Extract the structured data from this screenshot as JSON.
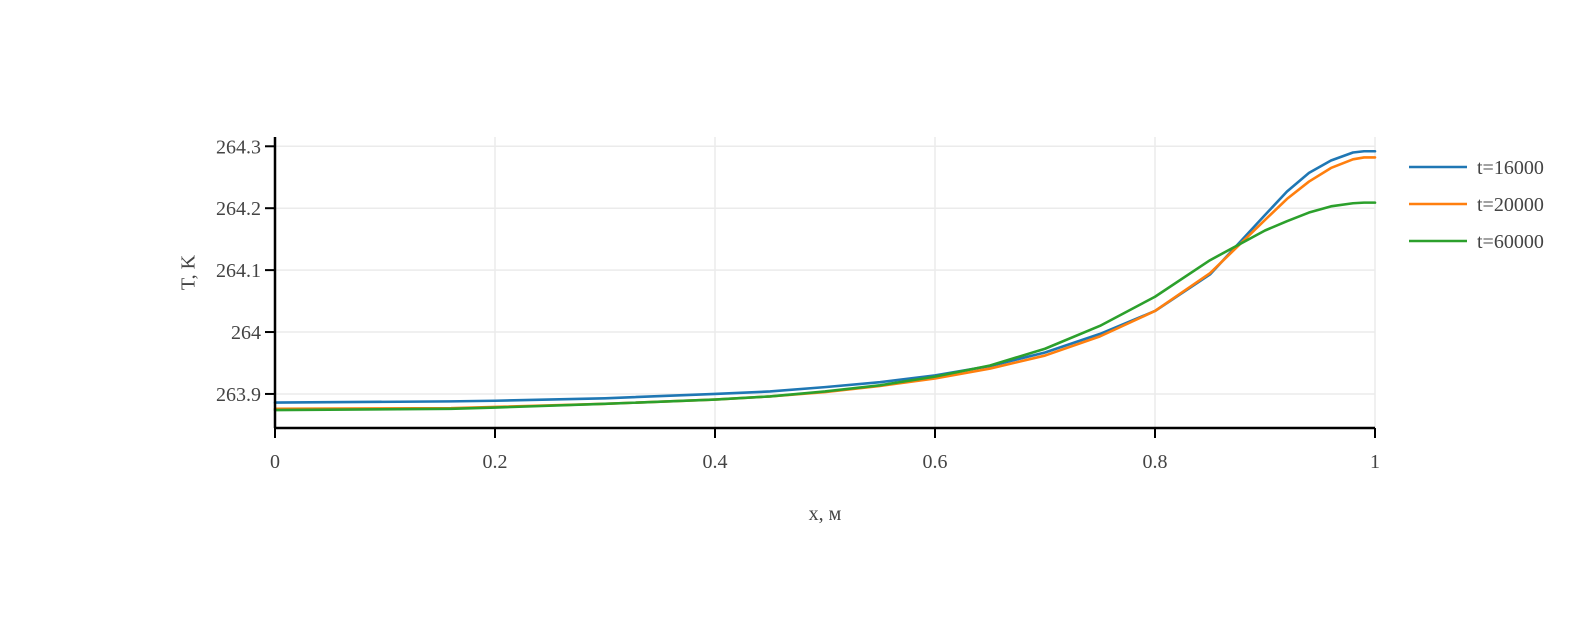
{
  "chart_data": {
    "type": "line",
    "title": "",
    "xlabel": "x, м",
    "ylabel": "T, K",
    "xlim": [
      0,
      1
    ],
    "ylim": [
      263.845,
      264.315
    ],
    "x_ticks": [
      0,
      0.2,
      0.4,
      0.6,
      0.8,
      1
    ],
    "x_tick_labels": [
      "0",
      "0.2",
      "0.4",
      "0.6",
      "0.8",
      "1"
    ],
    "y_ticks": [
      263.9,
      264,
      264.1,
      264.2,
      264.3
    ],
    "y_tick_labels": [
      "263.9",
      "264",
      "264.1",
      "264.2",
      "264.3"
    ],
    "grid": true,
    "legend_position": "right",
    "x": [
      0,
      0.16,
      0.2,
      0.3,
      0.4,
      0.45,
      0.5,
      0.55,
      0.6,
      0.65,
      0.7,
      0.75,
      0.8,
      0.85,
      0.9,
      0.92,
      0.94,
      0.96,
      0.98,
      0.99,
      1.0
    ],
    "series": [
      {
        "name": "t=16000",
        "color": "#1f77b4",
        "values": [
          263.886,
          263.888,
          263.889,
          263.893,
          263.9,
          263.904,
          263.911,
          263.919,
          263.93,
          263.945,
          263.967,
          263.997,
          264.034,
          264.093,
          264.189,
          264.227,
          264.257,
          264.277,
          264.29,
          264.292,
          264.292
        ]
      },
      {
        "name": "t=20000",
        "color": "#ff7f0e",
        "values": [
          263.876,
          263.877,
          263.879,
          263.884,
          263.891,
          263.896,
          263.903,
          263.913,
          263.925,
          263.941,
          263.962,
          263.993,
          264.034,
          264.095,
          264.181,
          264.215,
          264.243,
          264.265,
          264.279,
          264.282,
          264.282
        ]
      },
      {
        "name": "t=60000",
        "color": "#2ca02c",
        "values": [
          263.874,
          263.876,
          263.878,
          263.884,
          263.891,
          263.896,
          263.904,
          263.914,
          263.928,
          263.946,
          263.973,
          264.01,
          264.057,
          264.116,
          264.164,
          264.179,
          264.193,
          264.203,
          264.208,
          264.209,
          264.209
        ]
      }
    ]
  }
}
